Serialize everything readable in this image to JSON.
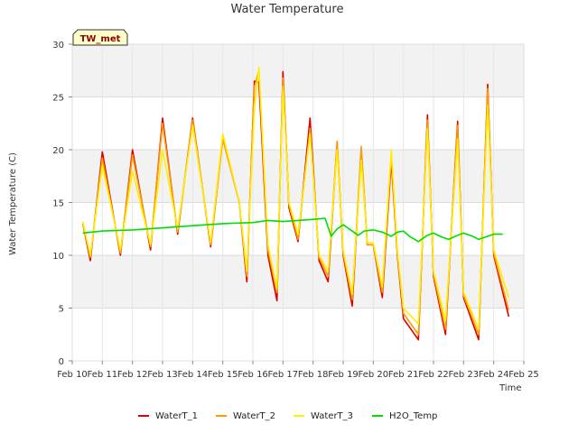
{
  "chart_data": {
    "type": "line",
    "title": "Water Temperature",
    "xlabel": "Time",
    "ylabel": "Water Temperature (C)",
    "site_label": "TW_met",
    "ylim": [
      0,
      30
    ],
    "yticks": [
      0,
      5,
      10,
      15,
      20,
      25,
      30
    ],
    "xlim": [
      0,
      15
    ],
    "xticks": [
      {
        "x": 0,
        "label": "Feb 10"
      },
      {
        "x": 1,
        "label": "Feb 11"
      },
      {
        "x": 2,
        "label": "Feb 12"
      },
      {
        "x": 3,
        "label": "Feb 13"
      },
      {
        "x": 4,
        "label": "Feb 14"
      },
      {
        "x": 5,
        "label": "Feb 15"
      },
      {
        "x": 6,
        "label": "Feb 16"
      },
      {
        "x": 7,
        "label": "Feb 17"
      },
      {
        "x": 8,
        "label": "Feb 18"
      },
      {
        "x": 9,
        "label": "Feb 19"
      },
      {
        "x": 10,
        "label": "Feb 20"
      },
      {
        "x": 11,
        "label": "Feb 21"
      },
      {
        "x": 12,
        "label": "Feb 22"
      },
      {
        "x": 13,
        "label": "Feb 23"
      },
      {
        "x": 14,
        "label": "Feb 24"
      },
      {
        "x": 15,
        "label": "Feb 25"
      }
    ],
    "grid": true,
    "legend_position": "bottom",
    "series": [
      {
        "name": "WaterT_1",
        "color": "#dd0000",
        "x": [
          0.35,
          0.6,
          1.0,
          1.6,
          2.0,
          2.6,
          3.0,
          3.5,
          4.0,
          4.6,
          5.0,
          5.55,
          5.8,
          6.05,
          6.2,
          6.5,
          6.8,
          7.0,
          7.2,
          7.5,
          7.9,
          8.2,
          8.5,
          8.8,
          9.0,
          9.3,
          9.6,
          9.8,
          10.0,
          10.3,
          10.6,
          10.8,
          11.0,
          11.5,
          11.8,
          12.0,
          12.4,
          12.8,
          13.0,
          13.5,
          13.8,
          14.0,
          14.5
        ],
        "y": [
          13.0,
          9.5,
          19.8,
          10.0,
          20.0,
          10.5,
          23.0,
          12.0,
          23.0,
          10.8,
          21.2,
          15.0,
          7.5,
          26.5,
          26.4,
          10.0,
          5.7,
          27.4,
          14.5,
          11.3,
          23.0,
          9.5,
          7.5,
          20.6,
          10.0,
          5.2,
          20.0,
          11.0,
          11.0,
          6.0,
          19.0,
          10.0,
          4.0,
          2.0,
          23.3,
          8.0,
          2.5,
          22.7,
          6.0,
          2.0,
          26.2,
          10.0,
          4.2
        ]
      },
      {
        "name": "WaterT_2",
        "color": "#ff9900",
        "x": [
          0.35,
          0.6,
          1.0,
          1.6,
          2.0,
          2.6,
          3.0,
          3.5,
          4.0,
          4.6,
          5.0,
          5.55,
          5.8,
          6.05,
          6.2,
          6.5,
          6.8,
          7.0,
          7.2,
          7.5,
          7.9,
          8.2,
          8.5,
          8.8,
          9.0,
          9.3,
          9.6,
          9.8,
          10.0,
          10.3,
          10.6,
          10.8,
          11.0,
          11.5,
          11.8,
          12.0,
          12.4,
          12.8,
          13.0,
          13.5,
          13.8,
          14.0,
          14.5
        ],
        "y": [
          13.0,
          9.8,
          19.2,
          10.2,
          19.5,
          10.8,
          22.5,
          12.2,
          22.8,
          11.0,
          21.0,
          15.0,
          8.0,
          26.0,
          27.5,
          10.5,
          6.5,
          26.8,
          14.8,
          11.5,
          22.0,
          9.8,
          8.0,
          20.8,
          10.2,
          5.8,
          20.3,
          11.0,
          11.0,
          6.5,
          19.5,
          10.2,
          4.5,
          2.5,
          22.8,
          8.2,
          3.0,
          22.3,
          6.2,
          2.5,
          25.8,
          10.2,
          4.8
        ]
      },
      {
        "name": "WaterT_3",
        "color": "#ffee00",
        "x": [
          0.35,
          0.6,
          1.0,
          1.6,
          2.0,
          2.6,
          3.0,
          3.5,
          4.0,
          4.6,
          5.0,
          5.55,
          5.8,
          6.05,
          6.2,
          6.5,
          6.8,
          7.0,
          7.2,
          7.5,
          7.9,
          8.2,
          8.5,
          8.8,
          9.0,
          9.3,
          9.6,
          9.8,
          10.0,
          10.3,
          10.6,
          10.8,
          11.0,
          11.5,
          11.8,
          12.0,
          12.4,
          12.8,
          13.0,
          13.5,
          13.8,
          14.0,
          14.5
        ],
        "y": [
          13.2,
          10.0,
          18.5,
          10.5,
          18.0,
          11.0,
          20.0,
          12.5,
          22.3,
          11.2,
          21.5,
          15.0,
          8.5,
          24.0,
          27.8,
          11.0,
          6.8,
          26.0,
          15.0,
          12.0,
          21.5,
          10.0,
          8.5,
          20.0,
          10.5,
          6.3,
          19.0,
          11.2,
          11.2,
          7.0,
          20.0,
          10.5,
          5.0,
          3.5,
          22.0,
          8.5,
          3.8,
          21.0,
          6.5,
          3.0,
          24.2,
          10.5,
          6.0
        ]
      },
      {
        "name": "H2O_Temp",
        "color": "#00dd00",
        "x": [
          0.35,
          1.0,
          2.0,
          3.0,
          4.0,
          5.0,
          6.0,
          6.5,
          7.0,
          7.5,
          8.0,
          8.4,
          8.6,
          8.8,
          9.0,
          9.2,
          9.5,
          9.7,
          10.0,
          10.3,
          10.6,
          10.8,
          11.0,
          11.2,
          11.5,
          11.8,
          12.0,
          12.3,
          12.5,
          12.8,
          13.0,
          13.3,
          13.5,
          13.8,
          14.0,
          14.3
        ],
        "y": [
          12.1,
          12.3,
          12.4,
          12.6,
          12.8,
          13.0,
          13.1,
          13.3,
          13.2,
          13.3,
          13.4,
          13.5,
          11.8,
          12.5,
          12.9,
          12.5,
          11.9,
          12.3,
          12.4,
          12.2,
          11.8,
          12.2,
          12.3,
          11.8,
          11.3,
          11.9,
          12.1,
          11.7,
          11.5,
          11.9,
          12.1,
          11.8,
          11.5,
          11.8,
          12.0,
          12.0
        ]
      }
    ]
  }
}
